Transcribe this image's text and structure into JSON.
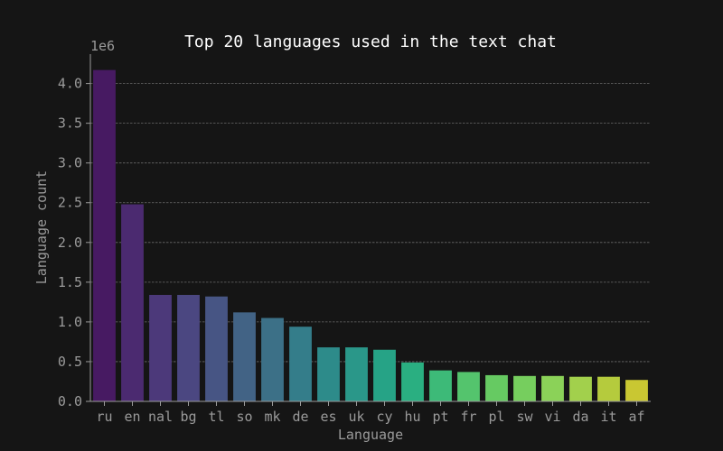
{
  "chart_data": {
    "type": "bar",
    "title": "Top 20 languages used in the text chat",
    "xlabel": "Language",
    "ylabel": "Language count",
    "offset_text": "1e6",
    "categories": [
      "ru",
      "en",
      "nal",
      "bg",
      "tl",
      "so",
      "mk",
      "de",
      "es",
      "uk",
      "cy",
      "hu",
      "pt",
      "fr",
      "pl",
      "sw",
      "vi",
      "da",
      "it",
      "af"
    ],
    "values": [
      4170000,
      2480000,
      1340000,
      1340000,
      1320000,
      1120000,
      1050000,
      940000,
      680000,
      680000,
      650000,
      490000,
      390000,
      370000,
      330000,
      320000,
      320000,
      310000,
      310000,
      270000
    ],
    "ylim": [
      0,
      4370000
    ],
    "yticks": [
      0,
      500000,
      1000000,
      1500000,
      2000000,
      2500000,
      3000000,
      3500000,
      4000000
    ],
    "ytick_labels": [
      "0.0",
      "0.5",
      "1.0",
      "1.5",
      "2.0",
      "2.5",
      "3.0",
      "3.5",
      "4.0"
    ],
    "grid": "y",
    "colors": [
      "#471a62",
      "#4b2a70",
      "#4c397a",
      "#4b4781",
      "#475584",
      "#426385",
      "#3c7087",
      "#347d8a",
      "#2d8b8a",
      "#2a9789",
      "#26a386",
      "#2aaf81",
      "#3dba78",
      "#54c46d",
      "#66ca62",
      "#76ce5e",
      "#8bd258",
      "#a2d04c",
      "#b5cb3d",
      "#c9c732"
    ],
    "background": "#151515"
  }
}
